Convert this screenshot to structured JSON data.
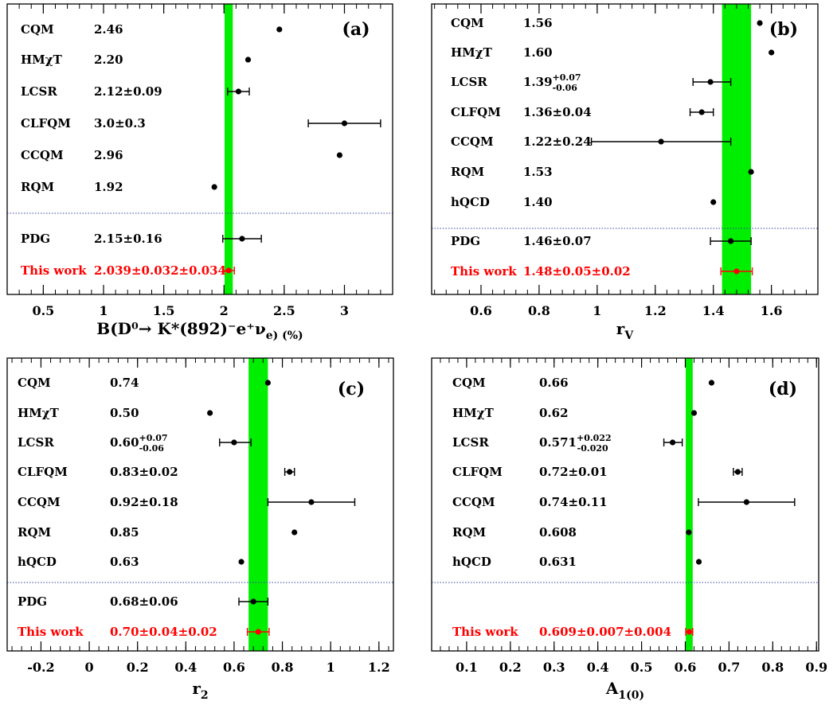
{
  "chart_data": [
    {
      "type": "scatter",
      "panel": "(a)",
      "xlabel": "B(D⁰→ K*(892)⁻e⁺ν_e) (%)",
      "xlim": [
        0.2,
        3.4
      ],
      "ticks": [
        0.5,
        1,
        1.5,
        2,
        2.5,
        3
      ],
      "tick_labels": [
        "0.5",
        "1",
        "1.5",
        "2",
        "2.5",
        "3"
      ],
      "band": [
        2.005,
        2.073
      ],
      "divider_after": 6,
      "entries": [
        {
          "name": "CQM",
          "label": "2.46",
          "value": 2.46,
          "err_lo": 0,
          "err_hi": 0,
          "highlight": false
        },
        {
          "name": "HMχT",
          "label": "2.20",
          "value": 2.2,
          "err_lo": 0,
          "err_hi": 0,
          "highlight": false
        },
        {
          "name": "LCSR",
          "label": "2.12±0.09",
          "value": 2.12,
          "err_lo": 0.09,
          "err_hi": 0.09,
          "highlight": false
        },
        {
          "name": "CLFQM",
          "label": "3.0±0.3",
          "value": 3.0,
          "err_lo": 0.3,
          "err_hi": 0.3,
          "highlight": false
        },
        {
          "name": "CCQM",
          "label": "2.96",
          "value": 2.96,
          "err_lo": 0,
          "err_hi": 0,
          "highlight": false
        },
        {
          "name": "RQM",
          "label": "1.92",
          "value": 1.92,
          "err_lo": 0,
          "err_hi": 0,
          "highlight": false
        },
        {
          "name": "PDG",
          "label": "2.15±0.16",
          "value": 2.15,
          "err_lo": 0.16,
          "err_hi": 0.16,
          "highlight": false
        },
        {
          "name": "This work",
          "label": "2.039±0.032±0.034",
          "value": 2.039,
          "err_lo": 0.047,
          "err_hi": 0.047,
          "highlight": true
        }
      ]
    },
    {
      "type": "scatter",
      "panel": "(b)",
      "xlabel": "r_V",
      "xlim": [
        0.43,
        1.76
      ],
      "ticks": [
        0.6,
        0.8,
        1,
        1.2,
        1.4,
        1.6
      ],
      "tick_labels": [
        "0.6",
        "0.8",
        "1",
        "1.2",
        "1.4",
        "1.6"
      ],
      "band": [
        1.43,
        1.53
      ],
      "divider_after": 7,
      "entries": [
        {
          "name": "CQM",
          "label": "1.56",
          "value": 1.56,
          "err_lo": 0,
          "err_hi": 0,
          "highlight": false
        },
        {
          "name": "HMχT",
          "label": "1.60",
          "value": 1.6,
          "err_lo": 0,
          "err_hi": 0,
          "highlight": false
        },
        {
          "name": "LCSR",
          "label": "1.39",
          "sup": "+0.07",
          "sub": "-0.06",
          "value": 1.39,
          "err_lo": 0.06,
          "err_hi": 0.07,
          "highlight": false
        },
        {
          "name": "CLFQM",
          "label": "1.36±0.04",
          "value": 1.36,
          "err_lo": 0.04,
          "err_hi": 0.04,
          "highlight": false
        },
        {
          "name": "CCQM",
          "label": "1.22±0.24",
          "value": 1.22,
          "err_lo": 0.24,
          "err_hi": 0.24,
          "highlight": false
        },
        {
          "name": "RQM",
          "label": "1.53",
          "value": 1.53,
          "err_lo": 0,
          "err_hi": 0,
          "highlight": false
        },
        {
          "name": "hQCD",
          "label": "1.40",
          "value": 1.4,
          "err_lo": 0,
          "err_hi": 0,
          "highlight": false
        },
        {
          "name": "PDG",
          "label": "1.46±0.07",
          "value": 1.46,
          "err_lo": 0.07,
          "err_hi": 0.07,
          "highlight": false
        },
        {
          "name": "This work",
          "label": "1.48±0.05±0.02",
          "value": 1.48,
          "err_lo": 0.054,
          "err_hi": 0.054,
          "highlight": true
        }
      ]
    },
    {
      "type": "scatter",
      "panel": "(c)",
      "xlabel": "r_2",
      "xlim": [
        -0.34,
        1.26
      ],
      "ticks": [
        -0.2,
        0,
        0.2,
        0.4,
        0.6,
        0.8,
        1,
        1.2
      ],
      "tick_labels": [
        "-0.2",
        "0",
        "0.2",
        "0.4",
        "0.6",
        "0.8",
        "1",
        "1.2"
      ],
      "band": [
        0.66,
        0.74
      ],
      "divider_after": 7,
      "entries": [
        {
          "name": "CQM",
          "label": "0.74",
          "value": 0.74,
          "err_lo": 0,
          "err_hi": 0,
          "highlight": false
        },
        {
          "name": "HMχT",
          "label": "0.50",
          "value": 0.5,
          "err_lo": 0,
          "err_hi": 0,
          "highlight": false
        },
        {
          "name": "LCSR",
          "label": "0.60",
          "sup": "+0.07",
          "sub": "-0.06",
          "value": 0.6,
          "err_lo": 0.06,
          "err_hi": 0.07,
          "highlight": false
        },
        {
          "name": "CLFQM",
          "label": "0.83±0.02",
          "value": 0.83,
          "err_lo": 0.02,
          "err_hi": 0.02,
          "highlight": false
        },
        {
          "name": "CCQM",
          "label": "0.92±0.18",
          "value": 0.92,
          "err_lo": 0.18,
          "err_hi": 0.18,
          "highlight": false
        },
        {
          "name": "RQM",
          "label": "0.85",
          "value": 0.85,
          "err_lo": 0,
          "err_hi": 0,
          "highlight": false
        },
        {
          "name": "hQCD",
          "label": "0.63",
          "value": 0.63,
          "err_lo": 0,
          "err_hi": 0,
          "highlight": false
        },
        {
          "name": "PDG",
          "label": "0.68±0.06",
          "value": 0.68,
          "err_lo": 0.06,
          "err_hi": 0.06,
          "highlight": false
        },
        {
          "name": "This work",
          "label": "0.70±0.04±0.02",
          "value": 0.7,
          "err_lo": 0.045,
          "err_hi": 0.045,
          "highlight": true
        }
      ]
    },
    {
      "type": "scatter",
      "panel": "(d)",
      "xlabel": "A_1(0)",
      "xlim": [
        0.02,
        0.905
      ],
      "ticks": [
        0.1,
        0.2,
        0.3,
        0.4,
        0.5,
        0.6,
        0.7,
        0.8,
        0.9
      ],
      "tick_labels": [
        "0.1",
        "0.2",
        "0.3",
        "0.4",
        "0.5",
        "0.6",
        "0.7",
        "0.8",
        "0.9"
      ],
      "band": [
        0.601,
        0.617
      ],
      "divider_after": 7,
      "entries": [
        {
          "name": "CQM",
          "label": "0.66",
          "value": 0.66,
          "err_lo": 0,
          "err_hi": 0,
          "highlight": false
        },
        {
          "name": "HMχT",
          "label": "0.62",
          "value": 0.62,
          "err_lo": 0,
          "err_hi": 0,
          "highlight": false
        },
        {
          "name": "LCSR",
          "label": "0.571",
          "sup": "+0.022",
          "sub": "-0.020",
          "value": 0.571,
          "err_lo": 0.02,
          "err_hi": 0.022,
          "highlight": false
        },
        {
          "name": "CLFQM",
          "label": "0.72±0.01",
          "value": 0.72,
          "err_lo": 0.01,
          "err_hi": 0.01,
          "highlight": false
        },
        {
          "name": "CCQM",
          "label": "0.74±0.11",
          "value": 0.74,
          "err_lo": 0.11,
          "err_hi": 0.11,
          "highlight": false
        },
        {
          "name": "RQM",
          "label": "0.608",
          "value": 0.608,
          "err_lo": 0,
          "err_hi": 0,
          "highlight": false
        },
        {
          "name": "hQCD",
          "label": "0.631",
          "value": 0.631,
          "err_lo": 0,
          "err_hi": 0,
          "highlight": false
        },
        {
          "name": "This work",
          "label": "0.609±0.007±0.004",
          "value": 0.609,
          "err_lo": 0.008,
          "err_hi": 0.008,
          "highlight": true
        }
      ]
    }
  ],
  "colors": {
    "band": "#00ee00",
    "highlight": "#ff0000",
    "divider": "#3344aa",
    "marker": "#000000"
  }
}
